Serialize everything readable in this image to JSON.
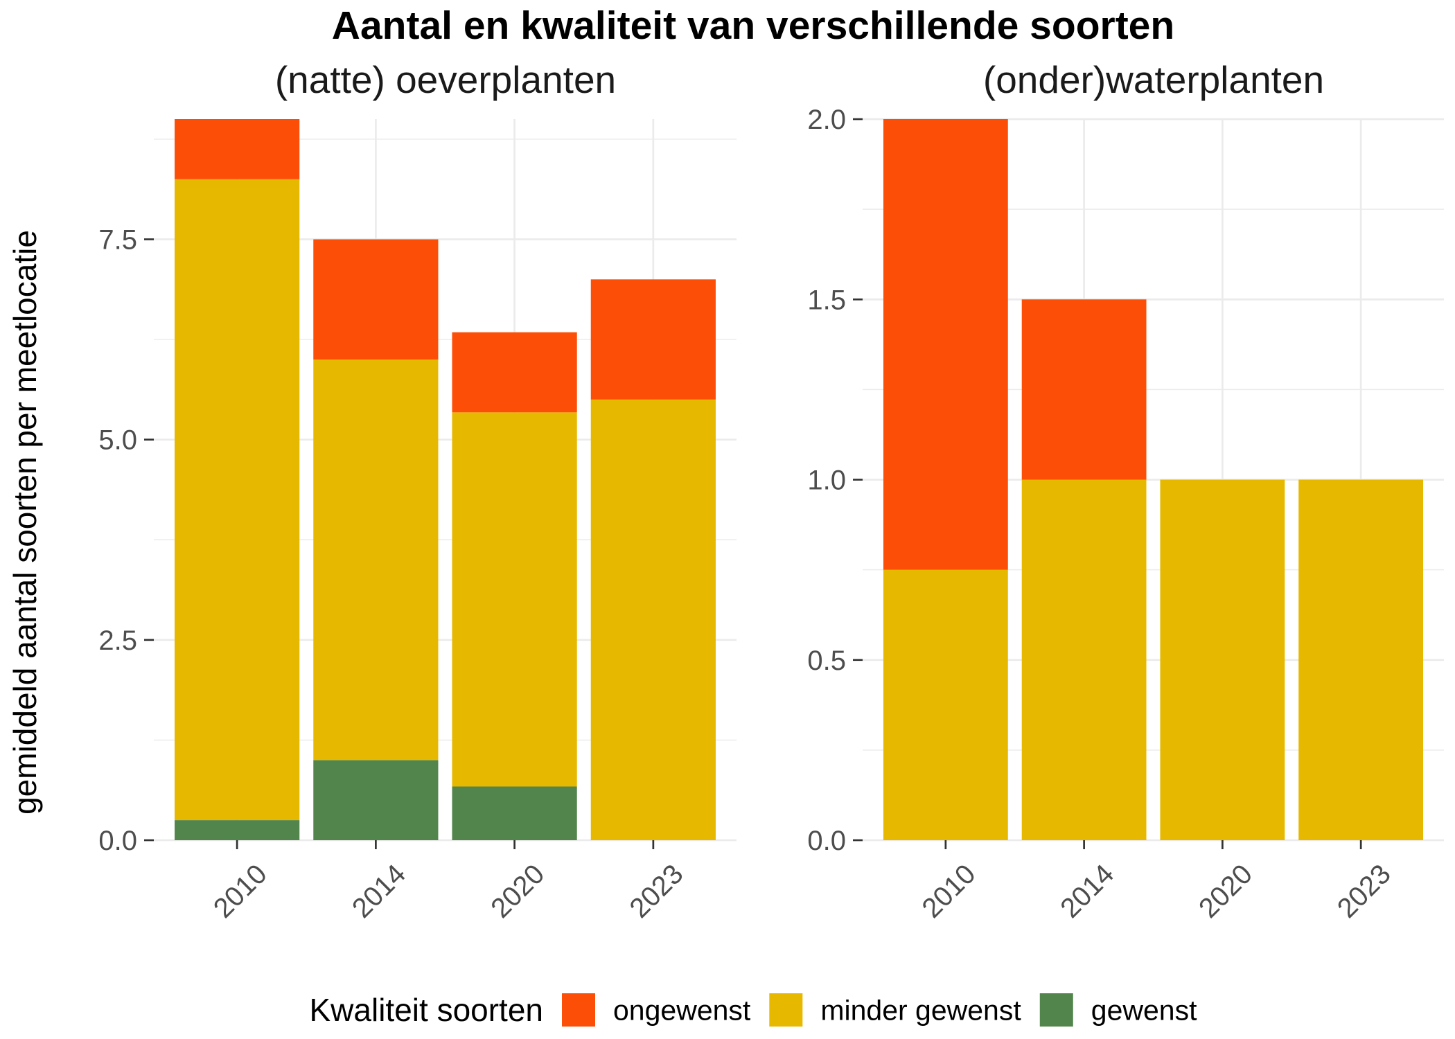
{
  "title": "Aantal en kwaliteit van verschillende soorten",
  "legend": {
    "title": "Kwaliteit soorten",
    "position": "bottom",
    "items": [
      {
        "label": "ongewenst",
        "color": "#FC4E07"
      },
      {
        "label": "minder gewenst",
        "color": "#E7B800"
      },
      {
        "label": "gewenst",
        "color": "#52854C"
      }
    ]
  },
  "chart_data": [
    {
      "type": "bar",
      "stacked": true,
      "title": "(natte) oeverplanten",
      "ylabel": "gemiddeld aantal soorten per meetlocatie",
      "categories": [
        "2010",
        "2014",
        "2020",
        "2023"
      ],
      "series": [
        {
          "name": "gewenst",
          "values": [
            0.25,
            1.0,
            0.67,
            0
          ]
        },
        {
          "name": "minder gewenst",
          "values": [
            8.0,
            5.0,
            4.67,
            5.5
          ]
        },
        {
          "name": "ongewenst",
          "values": [
            0.75,
            1.5,
            1.0,
            1.5
          ]
        }
      ],
      "ylim": [
        0,
        9
      ],
      "ytick_labels": [
        "0.0",
        "2.5",
        "5.0",
        "7.5"
      ],
      "grid": true
    },
    {
      "type": "bar",
      "stacked": true,
      "title": "(onder)waterplanten",
      "categories": [
        "2010",
        "2014",
        "2020",
        "2023"
      ],
      "series": [
        {
          "name": "gewenst",
          "values": [
            0,
            0,
            0,
            0
          ]
        },
        {
          "name": "minder gewenst",
          "values": [
            0.75,
            1.0,
            1.0,
            1.0
          ]
        },
        {
          "name": "ongewenst",
          "values": [
            1.25,
            0.5,
            0,
            0
          ]
        }
      ],
      "ylim": [
        0,
        2
      ],
      "ytick_labels": [
        "0.0",
        "0.5",
        "1.0",
        "1.5",
        "2.0"
      ],
      "grid": true
    }
  ]
}
